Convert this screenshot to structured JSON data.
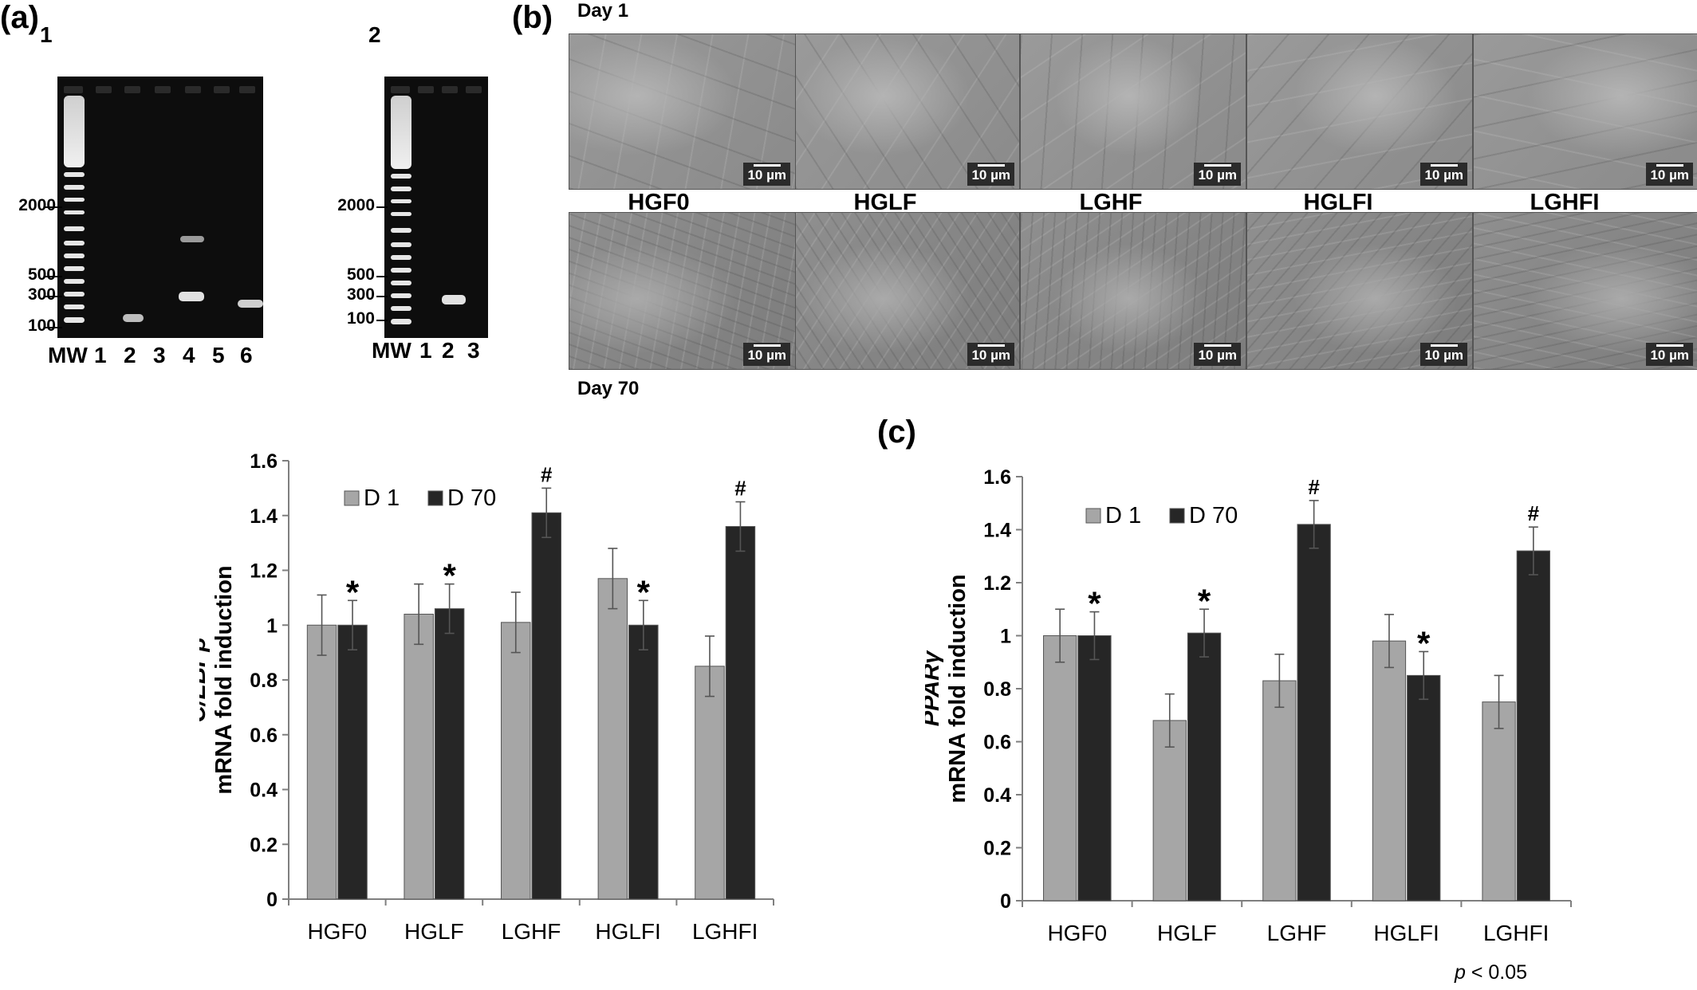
{
  "panel_a": {
    "letter": "(a)",
    "gels": [
      {
        "number": "1",
        "bp_labels": [
          "2000",
          "500",
          "300",
          "100"
        ],
        "lanes": [
          "MW",
          "1",
          "2",
          "3",
          "4",
          "5",
          "6"
        ]
      },
      {
        "number": "2",
        "bp_labels": [
          "2000",
          "500",
          "300",
          "100"
        ],
        "lanes": [
          "MW",
          "1",
          "2",
          "3"
        ]
      }
    ]
  },
  "panel_b": {
    "letter": "(b)",
    "day1_label": "Day 1",
    "day70_label": "Day 70",
    "groups": [
      "HGF0",
      "HGLF",
      "LGHF",
      "HGLFI",
      "LGHFI"
    ],
    "scale_bar": "10 µm"
  },
  "panel_c": {
    "letter": "(c)"
  },
  "p_value": {
    "symbol": "p",
    "text": " < 0.05"
  },
  "colors": {
    "d1": "#a6a6a6",
    "d70": "#262626"
  },
  "chart_data": [
    {
      "type": "bar",
      "ylabel_gene": "C/EBPβ",
      "ylabel": "mRNA fold induction",
      "categories": [
        "HGF0",
        "HGLF",
        "LGHF",
        "HGLFI",
        "LGHFI"
      ],
      "ylim": [
        0,
        1.6
      ],
      "yticks": [
        "0",
        "0.2",
        "0.4",
        "0.6",
        "0.8",
        "1",
        "1.2",
        "1.4",
        "1.6"
      ],
      "legend_position": "top-left",
      "series": [
        {
          "name": "D 1",
          "values": [
            1.0,
            1.04,
            1.01,
            1.17,
            0.85
          ],
          "errors": [
            0.11,
            0.11,
            0.11,
            0.11,
            0.11
          ]
        },
        {
          "name": "D 70",
          "values": [
            1.0,
            1.06,
            1.41,
            1.0,
            1.36
          ],
          "errors": [
            0.09,
            0.09,
            0.09,
            0.09,
            0.09
          ]
        }
      ],
      "markers": [
        "*",
        "*",
        "#",
        "*",
        "#"
      ]
    },
    {
      "type": "bar",
      "ylabel_gene": "PPARγ",
      "ylabel": "mRNA fold induction",
      "categories": [
        "HGF0",
        "HGLF",
        "LGHF",
        "HGLFI",
        "LGHFI"
      ],
      "ylim": [
        0,
        1.6
      ],
      "yticks": [
        "0",
        "0.2",
        "0.4",
        "0.6",
        "0.8",
        "1",
        "1.2",
        "1.4",
        "1.6"
      ],
      "legend_position": "top-left",
      "series": [
        {
          "name": "D 1",
          "values": [
            1.0,
            0.68,
            0.83,
            0.98,
            0.75
          ],
          "errors": [
            0.1,
            0.1,
            0.1,
            0.1,
            0.1
          ]
        },
        {
          "name": "D 70",
          "values": [
            1.0,
            1.01,
            1.42,
            0.85,
            1.32
          ],
          "errors": [
            0.09,
            0.09,
            0.09,
            0.09,
            0.09
          ]
        }
      ],
      "markers": [
        "*",
        "*",
        "#",
        "*",
        "#"
      ]
    }
  ]
}
